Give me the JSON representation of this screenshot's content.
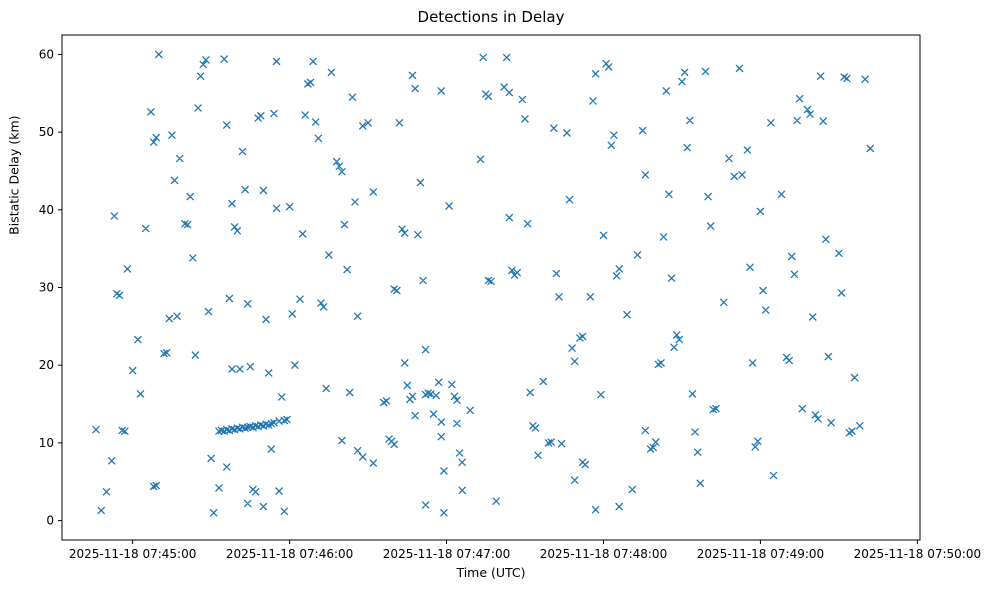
{
  "chart_data": {
    "type": "scatter",
    "title": "Detections in Delay",
    "xlabel": "Time (UTC)",
    "ylabel": "Bistatic Delay (km)",
    "marker": "x",
    "marker_color": "#1f77b4",
    "grid": false,
    "legend": null,
    "x_unit": "seconds since 2025-11-18 07:45:00 UTC",
    "xlim_seconds": [
      -27,
      301
    ],
    "ylim": [
      -2.5,
      62.5
    ],
    "x_tick_seconds": [
      0,
      60,
      120,
      180,
      240,
      300
    ],
    "x_tick_labels": [
      "2025-11-18 07:45:00",
      "2025-11-18 07:46:00",
      "2025-11-18 07:47:00",
      "2025-11-18 07:48:00",
      "2025-11-18 07:49:00",
      "2025-11-18 07:50:00"
    ],
    "y_ticks": [
      0,
      10,
      20,
      30,
      40,
      50,
      60
    ],
    "points": [
      [
        -14,
        11.7
      ],
      [
        -12,
        1.3
      ],
      [
        -10,
        3.7
      ],
      [
        -8,
        7.7
      ],
      [
        -7,
        39.2
      ],
      [
        -6,
        29.2
      ],
      [
        -5,
        29.0
      ],
      [
        -4,
        11.6
      ],
      [
        -3,
        11.5
      ],
      [
        -2,
        32.4
      ],
      [
        0,
        19.3
      ],
      [
        2,
        23.3
      ],
      [
        3,
        16.3
      ],
      [
        5,
        37.6
      ],
      [
        8,
        4.4
      ],
      [
        9,
        4.5
      ],
      [
        7,
        52.6
      ],
      [
        8,
        48.7
      ],
      [
        9,
        49.3
      ],
      [
        10,
        60.0
      ],
      [
        12,
        21.5
      ],
      [
        13,
        21.6
      ],
      [
        14,
        26.0
      ],
      [
        15,
        49.6
      ],
      [
        16,
        43.8
      ],
      [
        17,
        26.3
      ],
      [
        18,
        46.6
      ],
      [
        20,
        38.2
      ],
      [
        21,
        38.1
      ],
      [
        22,
        41.7
      ],
      [
        23,
        33.8
      ],
      [
        24,
        21.3
      ],
      [
        25,
        53.1
      ],
      [
        26,
        57.2
      ],
      [
        27,
        58.7
      ],
      [
        28,
        59.3
      ],
      [
        29,
        26.9
      ],
      [
        30,
        8.0
      ],
      [
        31,
        1.0
      ],
      [
        33,
        4.2
      ],
      [
        35,
        59.4
      ],
      [
        33,
        11.5
      ],
      [
        34,
        11.6
      ],
      [
        35,
        11.5
      ],
      [
        36,
        11.7
      ],
      [
        37,
        11.6
      ],
      [
        38,
        11.8
      ],
      [
        39,
        11.7
      ],
      [
        40,
        11.9
      ],
      [
        41,
        11.8
      ],
      [
        42,
        12.0
      ],
      [
        43,
        11.9
      ],
      [
        44,
        12.0
      ],
      [
        45,
        12.1
      ],
      [
        46,
        12.0
      ],
      [
        47,
        12.2
      ],
      [
        48,
        12.1
      ],
      [
        49,
        12.3
      ],
      [
        50,
        12.2
      ],
      [
        51,
        12.4
      ],
      [
        52,
        12.3
      ],
      [
        53,
        12.5
      ],
      [
        54,
        12.6
      ],
      [
        56,
        12.8
      ],
      [
        58,
        12.9
      ],
      [
        59,
        13.0
      ],
      [
        36,
        50.9
      ],
      [
        38,
        40.8
      ],
      [
        39,
        37.8
      ],
      [
        40,
        37.3
      ],
      [
        37,
        28.6
      ],
      [
        38,
        19.5
      ],
      [
        41,
        19.5
      ],
      [
        36,
        6.9
      ],
      [
        42,
        47.5
      ],
      [
        43,
        42.6
      ],
      [
        44,
        27.9
      ],
      [
        45,
        19.8
      ],
      [
        46,
        4.0
      ],
      [
        47,
        3.7
      ],
      [
        44,
        2.2
      ],
      [
        48,
        51.8
      ],
      [
        49,
        52.1
      ],
      [
        50,
        42.5
      ],
      [
        51,
        25.9
      ],
      [
        52,
        19.0
      ],
      [
        53,
        9.2
      ],
      [
        50,
        1.8
      ],
      [
        54,
        52.4
      ],
      [
        55,
        40.2
      ],
      [
        56,
        3.8
      ],
      [
        57,
        15.9
      ],
      [
        58,
        1.2
      ],
      [
        55,
        59.1
      ],
      [
        60,
        40.4
      ],
      [
        61,
        26.6
      ],
      [
        62,
        20.0
      ],
      [
        64,
        28.5
      ],
      [
        65,
        36.9
      ],
      [
        66,
        52.2
      ],
      [
        67,
        56.2
      ],
      [
        68,
        56.4
      ],
      [
        69,
        59.1
      ],
      [
        70,
        51.3
      ],
      [
        71,
        49.2
      ],
      [
        72,
        28.0
      ],
      [
        73,
        27.5
      ],
      [
        74,
        17.0
      ],
      [
        75,
        34.2
      ],
      [
        76,
        57.7
      ],
      [
        78,
        46.2
      ],
      [
        79,
        45.6
      ],
      [
        80,
        44.9
      ],
      [
        81,
        38.1
      ],
      [
        82,
        32.3
      ],
      [
        83,
        16.5
      ],
      [
        80,
        10.3
      ],
      [
        84,
        54.5
      ],
      [
        85,
        41.0
      ],
      [
        86,
        26.3
      ],
      [
        86,
        9.0
      ],
      [
        88,
        50.8
      ],
      [
        88,
        8.2
      ],
      [
        90,
        51.2
      ],
      [
        92,
        42.3
      ],
      [
        92,
        7.4
      ],
      [
        96,
        15.2
      ],
      [
        97,
        15.4
      ],
      [
        98,
        10.5
      ],
      [
        99,
        10.2
      ],
      [
        100,
        9.8
      ],
      [
        100,
        29.8
      ],
      [
        101,
        29.6
      ],
      [
        102,
        51.2
      ],
      [
        103,
        37.5
      ],
      [
        104,
        37.0
      ],
      [
        104,
        20.3
      ],
      [
        105,
        17.4
      ],
      [
        106,
        15.6
      ],
      [
        107,
        16.0
      ],
      [
        108,
        13.5
      ],
      [
        107,
        57.3
      ],
      [
        108,
        55.6
      ],
      [
        109,
        36.8
      ],
      [
        110,
        43.5
      ],
      [
        111,
        30.9
      ],
      [
        112,
        22.0
      ],
      [
        112,
        16.2
      ],
      [
        113,
        16.4
      ],
      [
        112,
        2.0
      ],
      [
        114,
        16.3
      ],
      [
        115,
        13.7
      ],
      [
        116,
        16.1
      ],
      [
        117,
        17.8
      ],
      [
        118,
        12.7
      ],
      [
        118,
        10.8
      ],
      [
        119,
        6.4
      ],
      [
        119,
        1.0
      ],
      [
        118,
        55.3
      ],
      [
        121,
        40.5
      ],
      [
        122,
        17.5
      ],
      [
        123,
        16.0
      ],
      [
        124,
        15.5
      ],
      [
        124,
        12.5
      ],
      [
        125,
        8.7
      ],
      [
        126,
        7.5
      ],
      [
        126,
        3.9
      ],
      [
        129,
        14.2
      ],
      [
        133,
        46.5
      ],
      [
        134,
        59.6
      ],
      [
        135,
        54.9
      ],
      [
        136,
        54.6
      ],
      [
        136,
        30.9
      ],
      [
        137,
        30.8
      ],
      [
        139,
        2.5
      ],
      [
        142,
        55.8
      ],
      [
        143,
        59.6
      ],
      [
        144,
        55.1
      ],
      [
        144,
        39.0
      ],
      [
        145,
        32.2
      ],
      [
        146,
        31.6
      ],
      [
        147,
        31.9
      ],
      [
        149,
        54.2
      ],
      [
        150,
        51.7
      ],
      [
        151,
        38.2
      ],
      [
        152,
        16.5
      ],
      [
        153,
        12.2
      ],
      [
        154,
        11.9
      ],
      [
        155,
        8.4
      ],
      [
        157,
        17.9
      ],
      [
        159,
        10.0
      ],
      [
        160,
        10.1
      ],
      [
        161,
        50.5
      ],
      [
        162,
        31.8
      ],
      [
        163,
        28.8
      ],
      [
        164,
        9.9
      ],
      [
        166,
        49.9
      ],
      [
        167,
        41.3
      ],
      [
        168,
        22.2
      ],
      [
        169,
        20.5
      ],
      [
        169,
        5.2
      ],
      [
        171,
        23.5
      ],
      [
        172,
        23.7
      ],
      [
        172,
        7.5
      ],
      [
        173,
        7.2
      ],
      [
        175,
        28.8
      ],
      [
        176,
        54.0
      ],
      [
        177,
        57.5
      ],
      [
        177,
        1.4
      ],
      [
        179,
        16.2
      ],
      [
        180,
        36.7
      ],
      [
        181,
        58.8
      ],
      [
        182,
        58.4
      ],
      [
        183,
        48.3
      ],
      [
        184,
        49.6
      ],
      [
        185,
        31.5
      ],
      [
        186,
        32.4
      ],
      [
        186,
        1.8
      ],
      [
        189,
        26.5
      ],
      [
        191,
        4.0
      ],
      [
        193,
        34.2
      ],
      [
        195,
        50.2
      ],
      [
        196,
        44.5
      ],
      [
        196,
        11.6
      ],
      [
        198,
        9.2
      ],
      [
        199,
        9.4
      ],
      [
        200,
        10.1
      ],
      [
        201,
        20.1
      ],
      [
        202,
        20.3
      ],
      [
        203,
        36.5
      ],
      [
        204,
        55.3
      ],
      [
        205,
        42.0
      ],
      [
        206,
        31.2
      ],
      [
        207,
        22.3
      ],
      [
        208,
        23.9
      ],
      [
        209,
        23.3
      ],
      [
        210,
        56.5
      ],
      [
        211,
        57.7
      ],
      [
        212,
        48.0
      ],
      [
        213,
        51.5
      ],
      [
        214,
        16.3
      ],
      [
        215,
        11.4
      ],
      [
        216,
        8.8
      ],
      [
        217,
        4.8
      ],
      [
        219,
        57.8
      ],
      [
        220,
        41.7
      ],
      [
        221,
        37.9
      ],
      [
        222,
        14.3
      ],
      [
        223,
        14.4
      ],
      [
        226,
        28.1
      ],
      [
        228,
        46.6
      ],
      [
        230,
        44.3
      ],
      [
        232,
        58.2
      ],
      [
        233,
        44.5
      ],
      [
        235,
        47.7
      ],
      [
        236,
        32.6
      ],
      [
        237,
        20.3
      ],
      [
        238,
        9.5
      ],
      [
        239,
        10.2
      ],
      [
        240,
        39.8
      ],
      [
        241,
        29.6
      ],
      [
        242,
        27.1
      ],
      [
        244,
        51.2
      ],
      [
        245,
        5.8
      ],
      [
        248,
        42.0
      ],
      [
        250,
        21.0
      ],
      [
        251,
        20.6
      ],
      [
        252,
        34.0
      ],
      [
        253,
        31.7
      ],
      [
        254,
        51.5
      ],
      [
        255,
        54.3
      ],
      [
        256,
        14.4
      ],
      [
        258,
        52.9
      ],
      [
        259,
        52.3
      ],
      [
        260,
        26.2
      ],
      [
        261,
        13.6
      ],
      [
        262,
        13.1
      ],
      [
        263,
        57.2
      ],
      [
        264,
        51.4
      ],
      [
        265,
        36.2
      ],
      [
        266,
        21.1
      ],
      [
        267,
        12.6
      ],
      [
        270,
        34.4
      ],
      [
        271,
        29.3
      ],
      [
        272,
        57.1
      ],
      [
        273,
        56.9
      ],
      [
        274,
        11.3
      ],
      [
        275,
        11.5
      ],
      [
        276,
        18.4
      ],
      [
        278,
        12.2
      ],
      [
        280,
        56.8
      ],
      [
        282,
        47.9
      ]
    ]
  }
}
